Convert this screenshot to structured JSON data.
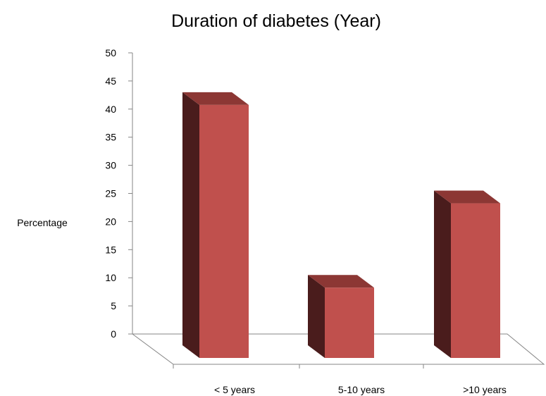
{
  "chart_data": {
    "type": "bar",
    "title": "Duration of diabetes (Year)",
    "xlabel": "",
    "ylabel": "Percentage",
    "categories": [
      "< 5 years",
      "5-10 years",
      ">10 years"
    ],
    "values": [
      45,
      12.5,
      27.5
    ],
    "ylim": [
      0,
      50
    ],
    "yticks": [
      0,
      5,
      10,
      15,
      20,
      25,
      30,
      35,
      40,
      45,
      50
    ],
    "grid": false,
    "legend": "none",
    "colors": {
      "front": "#C0504D",
      "side": "#4A1C1C",
      "top": "#8C3734"
    }
  }
}
